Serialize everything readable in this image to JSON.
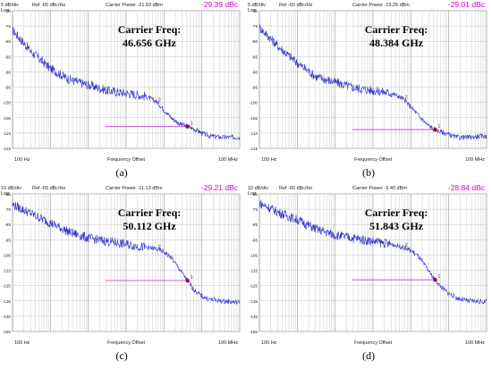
{
  "chart_data": [
    {
      "type": "line",
      "panel_label": "(a)",
      "scale_label": "5 dB/div",
      "log_label": "Log",
      "ref_label": "Ref -65 dBc/Hz",
      "carrier_power": "Carrier Power -21.93 dBm",
      "marker_value": "-29.39 dBc",
      "carrier_freq_line1": "Carrier Freq:",
      "carrier_freq_line2": "46.656 GHz",
      "xlabel": "Frequency Offset",
      "x_start_label": "100 Hz",
      "x_end_label": "100 MHz",
      "y_ticks": [
        "-70",
        "-75",
        "-80",
        "-85",
        "-90",
        "-95",
        "-100",
        "-105",
        "-110",
        "-115"
      ],
      "ylim": [
        -115,
        -65
      ],
      "xlim_log10": [
        2,
        8
      ],
      "marker_1": "1",
      "marker_2": "2",
      "x_log10": [
        2.0,
        2.5,
        3.0,
        3.5,
        4.0,
        4.5,
        5.0,
        5.5,
        5.8,
        6.0,
        6.2,
        6.4,
        6.6,
        6.8,
        7.0,
        7.2,
        7.5,
        8.0
      ],
      "values": [
        -72,
        -80,
        -86,
        -90,
        -92,
        -94,
        -95,
        -96,
        -98,
        -101,
        -104,
        -106,
        -107,
        -108,
        -109.5,
        -110.5,
        -111,
        -111
      ]
    },
    {
      "type": "line",
      "panel_label": "(b)",
      "scale_label": "5 dB/div",
      "log_label": "Log",
      "ref_label": "Ref -65 dBc/Hz",
      "carrier_power": "Carrier Power -19.25 dBm",
      "marker_value": "-29.01 dBc",
      "carrier_freq_line1": "Carrier Freq:",
      "carrier_freq_line2": "48.384 GHz",
      "xlabel": "Frequency Offset",
      "x_start_label": "100 Hz",
      "x_end_label": "100 MHz",
      "y_ticks": [
        "-70",
        "-75",
        "-80",
        "-85",
        "-90",
        "-95",
        "-100",
        "-105",
        "-110",
        "-115"
      ],
      "ylim": [
        -115,
        -65
      ],
      "xlim_log10": [
        2,
        8
      ],
      "marker_1": "1",
      "marker_2": "2",
      "x_log10": [
        2.0,
        2.5,
        3.0,
        3.5,
        4.0,
        4.5,
        5.0,
        5.5,
        5.8,
        6.0,
        6.2,
        6.4,
        6.6,
        6.8,
        7.0,
        7.2,
        7.5,
        8.0
      ],
      "values": [
        -71,
        -78,
        -84,
        -89,
        -91,
        -93,
        -94,
        -95,
        -97,
        -100,
        -103,
        -106,
        -108,
        -109,
        -110,
        -111,
        -111,
        -110.5
      ]
    },
    {
      "type": "line",
      "panel_label": "(c)",
      "scale_label": "10 dB/div",
      "log_label": "Log",
      "ref_label": "Ref -65 dBc/Hz",
      "carrier_power": "Carrier Power -11.13 dBm",
      "marker_value": "-29.21 dBc",
      "carrier_freq_line1": "Carrier Freq:",
      "carrier_freq_line2": "50.112 GHz",
      "xlabel": "Frequency Offset",
      "x_start_label": "100 Hz",
      "x_end_label": "100 MHz",
      "y_ticks": [
        "-65",
        "-75",
        "-85",
        "-95",
        "-105",
        "-115",
        "-125",
        "-135",
        "-145",
        "-155"
      ],
      "ylim": [
        -155,
        -65
      ],
      "xlim_log10": [
        2,
        8
      ],
      "marker_1": "1",
      "marker_2": "2",
      "x_log10": [
        2.0,
        2.5,
        3.0,
        3.5,
        4.0,
        4.5,
        5.0,
        5.5,
        5.8,
        6.0,
        6.2,
        6.4,
        6.6,
        6.8,
        7.0,
        7.2,
        7.5,
        8.0
      ],
      "values": [
        -72,
        -78,
        -84,
        -90,
        -94,
        -96,
        -98,
        -100,
        -101,
        -103,
        -107,
        -114,
        -121,
        -128,
        -132,
        -134,
        -135,
        -136
      ]
    },
    {
      "type": "line",
      "panel_label": "(d)",
      "scale_label": "10 dB/div",
      "log_label": "Log",
      "ref_label": "Ref -65 dBc/Hz",
      "carrier_power": "Carrier Power -9.40 dBm",
      "marker_value": "-28.84 dBc",
      "carrier_freq_line1": "Carrier Freq:",
      "carrier_freq_line2": "51.843 GHz",
      "xlabel": "Frequency Offset",
      "x_start_label": "100 Hz",
      "x_end_label": "100 MHz",
      "y_ticks": [
        "-65",
        "-75",
        "-85",
        "-95",
        "-105",
        "-115",
        "-125",
        "-135",
        "-145",
        "-155"
      ],
      "ylim": [
        -155,
        -65
      ],
      "xlim_log10": [
        2,
        8
      ],
      "marker_1": "1",
      "marker_2": "2",
      "x_log10": [
        2.0,
        2.5,
        3.0,
        3.5,
        4.0,
        4.5,
        5.0,
        5.5,
        5.8,
        6.0,
        6.2,
        6.4,
        6.6,
        6.8,
        7.0,
        7.2,
        7.5,
        8.0
      ],
      "values": [
        -71,
        -77,
        -82,
        -88,
        -92,
        -94,
        -96,
        -98,
        -100,
        -102,
        -106,
        -113,
        -120,
        -126,
        -130,
        -133,
        -135,
        -135.5
      ]
    }
  ],
  "colors": {
    "trace": "#3333cc",
    "grid": "#b8b8b8",
    "marker_line": "#cc33cc",
    "marker_dot": "#aa0033",
    "marker_value": "#cc00cc",
    "axis_text": "#222222"
  }
}
